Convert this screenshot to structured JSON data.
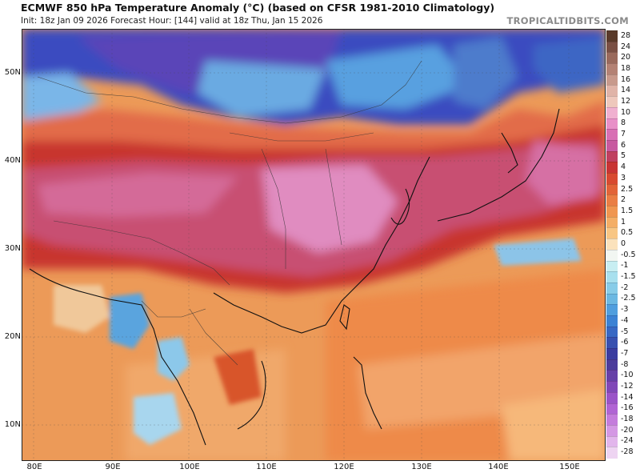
{
  "header": {
    "title": "ECMWF 850 hPa Temperature Anomaly (°C) (based on CFSR 1981-2010 Climatology)",
    "subtitle": "Init: 18z Jan 09 2026   Forecast Hour: [144]   valid at 18z Thu, Jan 15 2026",
    "brand": "TROPICALTIDBITS.COM"
  },
  "map": {
    "lat_labels": [
      "50N",
      "40N",
      "30N",
      "20N",
      "10N"
    ],
    "lon_labels": [
      "80E",
      "90E",
      "100E",
      "110E",
      "120E",
      "130E",
      "140E",
      "150E"
    ]
  },
  "colorbar": {
    "labels": [
      "28",
      "24",
      "20",
      "18",
      "16",
      "14",
      "12",
      "10",
      "8",
      "7",
      "6",
      "5",
      "4",
      "3",
      "2.5",
      "2",
      "1.5",
      "1",
      "0.5",
      "0",
      "-0.5",
      "-1",
      "-1.5",
      "-2",
      "-2.5",
      "-3",
      "-4",
      "-5",
      "-6",
      "-7",
      "-8",
      "-10",
      "-12",
      "-14",
      "-16",
      "-18",
      "-20",
      "-24",
      "-28"
    ],
    "colors": [
      "#5a3a2a",
      "#7a5044",
      "#9a6a5c",
      "#b48274",
      "#c89a8c",
      "#e0b4a8",
      "#eec8bc",
      "#f0b0d0",
      "#e890c8",
      "#d870b4",
      "#c85aa0",
      "#c04060",
      "#c83434",
      "#d84a30",
      "#e26438",
      "#ea7e44",
      "#f09650",
      "#f4ae66",
      "#f8c684",
      "#fbe2bc",
      "#f2f6f2",
      "#c8eef2",
      "#a8e0ee",
      "#88cce8",
      "#6cb8e2",
      "#509ede",
      "#3c82d4",
      "#3868c4",
      "#3850b0",
      "#3a3ca0",
      "#4c3c9c",
      "#6640a8",
      "#8048b8",
      "#9a54c8",
      "#b064d4",
      "#c47cdc",
      "#d498e4",
      "#e2b6ec",
      "#eed4f2"
    ]
  }
}
